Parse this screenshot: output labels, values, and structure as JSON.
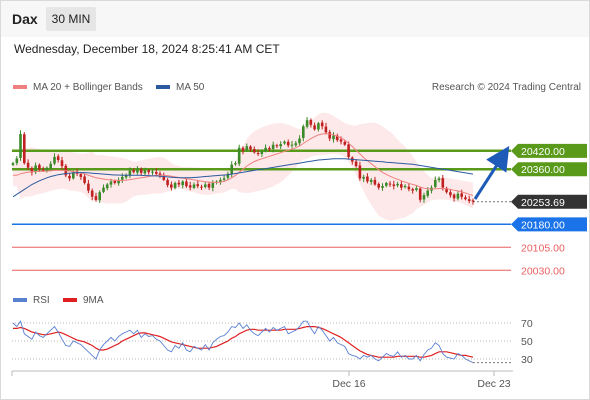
{
  "header": {
    "instrument": "Dax",
    "timeframe": "30 MIN",
    "datetime": "Wednesday, December 18, 2024 8:25:41 AM CET"
  },
  "legend": {
    "ma20_label": "MA 20 + Bollinger Bands",
    "ma50_label": "MA 50",
    "copyright": "Research © 2024 Trading Central",
    "rsi_label": "RSI",
    "rsi_ma_label": "9MA"
  },
  "colors": {
    "ma20": "#f08080",
    "ma50": "#2c5aa0",
    "resistance": "#5a9a1a",
    "pivot": "#1a73e8",
    "support": "#e86060",
    "current": "#333333",
    "candle_up": "#3a8a2a",
    "candle_down": "#c02020",
    "rsi": "#5a80d0",
    "rsi_ma": "#e02020"
  },
  "chart_data": [
    {
      "type": "candlestick",
      "title": "",
      "y_range": [
        19995,
        20550
      ],
      "x_ticks": [
        "Dec 16",
        "Dec 23"
      ],
      "price_levels": [
        {
          "name": "resistance_2",
          "value": 20420.0,
          "label": "20420.00",
          "style": "resistance"
        },
        {
          "name": "resistance_1",
          "value": 20360.0,
          "label": "20360.00",
          "style": "resistance"
        },
        {
          "name": "current_price",
          "value": 20253.69,
          "label": "20253.69",
          "style": "current"
        },
        {
          "name": "pivot",
          "value": 20180.0,
          "label": "20180.00",
          "style": "pivot"
        },
        {
          "name": "support_1",
          "value": 20105.0,
          "label": "20105.00",
          "style": "support"
        },
        {
          "name": "support_2",
          "value": 20030.0,
          "label": "20030.00",
          "style": "support"
        }
      ],
      "close_series": [
        20380,
        20395,
        20475,
        20380,
        20365,
        20350,
        20372,
        20360,
        20355,
        20365,
        20378,
        20400,
        20390,
        20370,
        20340,
        20330,
        20350,
        20345,
        20335,
        20315,
        20290,
        20270,
        20260,
        20285,
        20300,
        20310,
        20320,
        20315,
        20325,
        20335,
        20340,
        20355,
        20350,
        20360,
        20348,
        20356,
        20350,
        20352,
        20345,
        20340,
        20325,
        20308,
        20300,
        20315,
        20310,
        20320,
        20305,
        20300,
        20310,
        20305,
        20302,
        20310,
        20300,
        20315,
        20320,
        20325,
        20330,
        20345,
        20375,
        20380,
        20430,
        20420,
        20435,
        20425,
        20415,
        20410,
        20418,
        20430,
        20425,
        20440,
        20435,
        20442,
        20450,
        20438,
        20440,
        20445,
        20460,
        20500,
        20520,
        20505,
        20490,
        20510,
        20500,
        20480,
        20460,
        20470,
        20455,
        20450,
        20440,
        20400,
        20385,
        20370,
        20330,
        20335,
        20320,
        20325,
        20310,
        20300,
        20305,
        20315,
        20310,
        20305,
        20312,
        20300,
        20305,
        20295,
        20290,
        20298,
        20260,
        20275,
        20290,
        20300,
        20325,
        20330,
        20300,
        20285,
        20275,
        20265,
        20280,
        20270,
        20262,
        20256,
        20254
      ],
      "ma20_series": [
        20340,
        20340,
        20345,
        20348,
        20350,
        20352,
        20352,
        20353,
        20353,
        20354,
        20355,
        20356,
        20356,
        20356,
        20355,
        20354,
        20352,
        20350,
        20348,
        20345,
        20340,
        20336,
        20332,
        20330,
        20328,
        20326,
        20325,
        20324,
        20323,
        20323,
        20324,
        20326,
        20328,
        20330,
        20332,
        20334,
        20336,
        20338,
        20340,
        20340,
        20340,
        20339,
        20337,
        20335,
        20333,
        20331,
        20329,
        20327,
        20325,
        20323,
        20321,
        20319,
        20318,
        20317,
        20317,
        20318,
        20320,
        20325,
        20332,
        20340,
        20350,
        20360,
        20370,
        20378,
        20385,
        20390,
        20394,
        20398,
        20402,
        20406,
        20410,
        20414,
        20418,
        20422,
        20426,
        20430,
        20436,
        20444,
        20452,
        20460,
        20466,
        20472,
        20475,
        20476,
        20475,
        20472,
        20468,
        20462,
        20455,
        20445,
        20434,
        20422,
        20410,
        20398,
        20388,
        20378,
        20368,
        20358,
        20350,
        20343,
        20337,
        20332,
        20327,
        20322,
        20318,
        20314,
        20310,
        20307,
        20302,
        20298,
        20296,
        20295,
        20296,
        20297,
        20297,
        20296,
        20294,
        20291,
        20289,
        20286,
        20282,
        20278,
        20274
      ],
      "ma50_series": [
        20270,
        20278,
        20286,
        20294,
        20302,
        20310,
        20316,
        20322,
        20327,
        20332,
        20336,
        20339,
        20342,
        20344,
        20346,
        20347,
        20348,
        20349,
        20349,
        20349,
        20348,
        20347,
        20346,
        20345,
        20344,
        20343,
        20342,
        20341,
        20341,
        20340,
        20340,
        20340,
        20340,
        20340,
        20340,
        20339,
        20339,
        20338,
        20338,
        20337,
        20336,
        20335,
        20334,
        20333,
        20332,
        20332,
        20332,
        20332,
        20333,
        20334,
        20335,
        20336,
        20337,
        20338,
        20339,
        20340,
        20341,
        20342,
        20344,
        20346,
        20348,
        20350,
        20352,
        20354,
        20356,
        20358,
        20360,
        20362,
        20364,
        20366,
        20368,
        20370,
        20372,
        20374,
        20376,
        20378,
        20380,
        20382,
        20384,
        20386,
        20388,
        20390,
        20391,
        20392,
        20393,
        20394,
        20394,
        20394,
        20394,
        20393,
        20392,
        20391,
        20390,
        20389,
        20388,
        20387,
        20386,
        20385,
        20384,
        20383,
        20382,
        20381,
        20380,
        20379,
        20378,
        20377,
        20376,
        20374,
        20372,
        20370,
        20368,
        20366,
        20364,
        20362,
        20360,
        20358,
        20356,
        20354,
        20352,
        20350,
        20348,
        20346,
        20344
      ]
    },
    {
      "type": "line",
      "title": "",
      "y_range": [
        20,
        80
      ],
      "y_ticks": [
        70,
        50,
        30
      ],
      "series": [
        {
          "name": "RSI",
          "values": [
            70,
            66,
            72,
            58,
            55,
            52,
            60,
            56,
            54,
            58,
            62,
            66,
            60,
            52,
            45,
            44,
            50,
            48,
            46,
            42,
            38,
            34,
            30,
            40,
            46,
            50,
            54,
            50,
            55,
            58,
            60,
            62,
            58,
            62,
            54,
            58,
            55,
            56,
            52,
            50,
            45,
            40,
            38,
            45,
            42,
            48,
            40,
            38,
            44,
            42,
            40,
            46,
            40,
            48,
            52,
            55,
            56,
            60,
            66,
            65,
            70,
            64,
            68,
            62,
            58,
            56,
            60,
            64,
            60,
            65,
            62,
            64,
            66,
            58,
            60,
            62,
            66,
            72,
            72,
            64,
            58,
            66,
            62,
            56,
            50,
            54,
            48,
            46,
            44,
            36,
            34,
            33,
            30,
            34,
            32,
            34,
            30,
            28,
            32,
            36,
            34,
            33,
            38,
            32,
            34,
            30,
            30,
            34,
            28,
            35,
            40,
            42,
            48,
            45,
            36,
            32,
            31,
            30,
            36,
            34,
            30,
            28,
            26
          ]
        },
        {
          "name": "9MA",
          "values": [
            64,
            64,
            65,
            64,
            62,
            60,
            59,
            58,
            57,
            57,
            58,
            59,
            60,
            59,
            57,
            55,
            53,
            51,
            50,
            49,
            47,
            45,
            42,
            40,
            40,
            41,
            43,
            45,
            47,
            50,
            52,
            54,
            56,
            58,
            59,
            59,
            58,
            57,
            56,
            55,
            53,
            51,
            49,
            48,
            47,
            46,
            45,
            44,
            43,
            42,
            42,
            42,
            42,
            43,
            44,
            46,
            48,
            50,
            53,
            55,
            58,
            60,
            62,
            63,
            63,
            62,
            62,
            62,
            62,
            62,
            62,
            62,
            63,
            63,
            63,
            63,
            64,
            65,
            66,
            66,
            66,
            65,
            64,
            62,
            60,
            58,
            56,
            54,
            51,
            48,
            45,
            42,
            39,
            37,
            35,
            34,
            33,
            32,
            32,
            32,
            32,
            32,
            33,
            33,
            33,
            33,
            33,
            33,
            32,
            32,
            33,
            34,
            36,
            38,
            38,
            38,
            37,
            36,
            35,
            34,
            34,
            33,
            32
          ]
        }
      ]
    }
  ]
}
